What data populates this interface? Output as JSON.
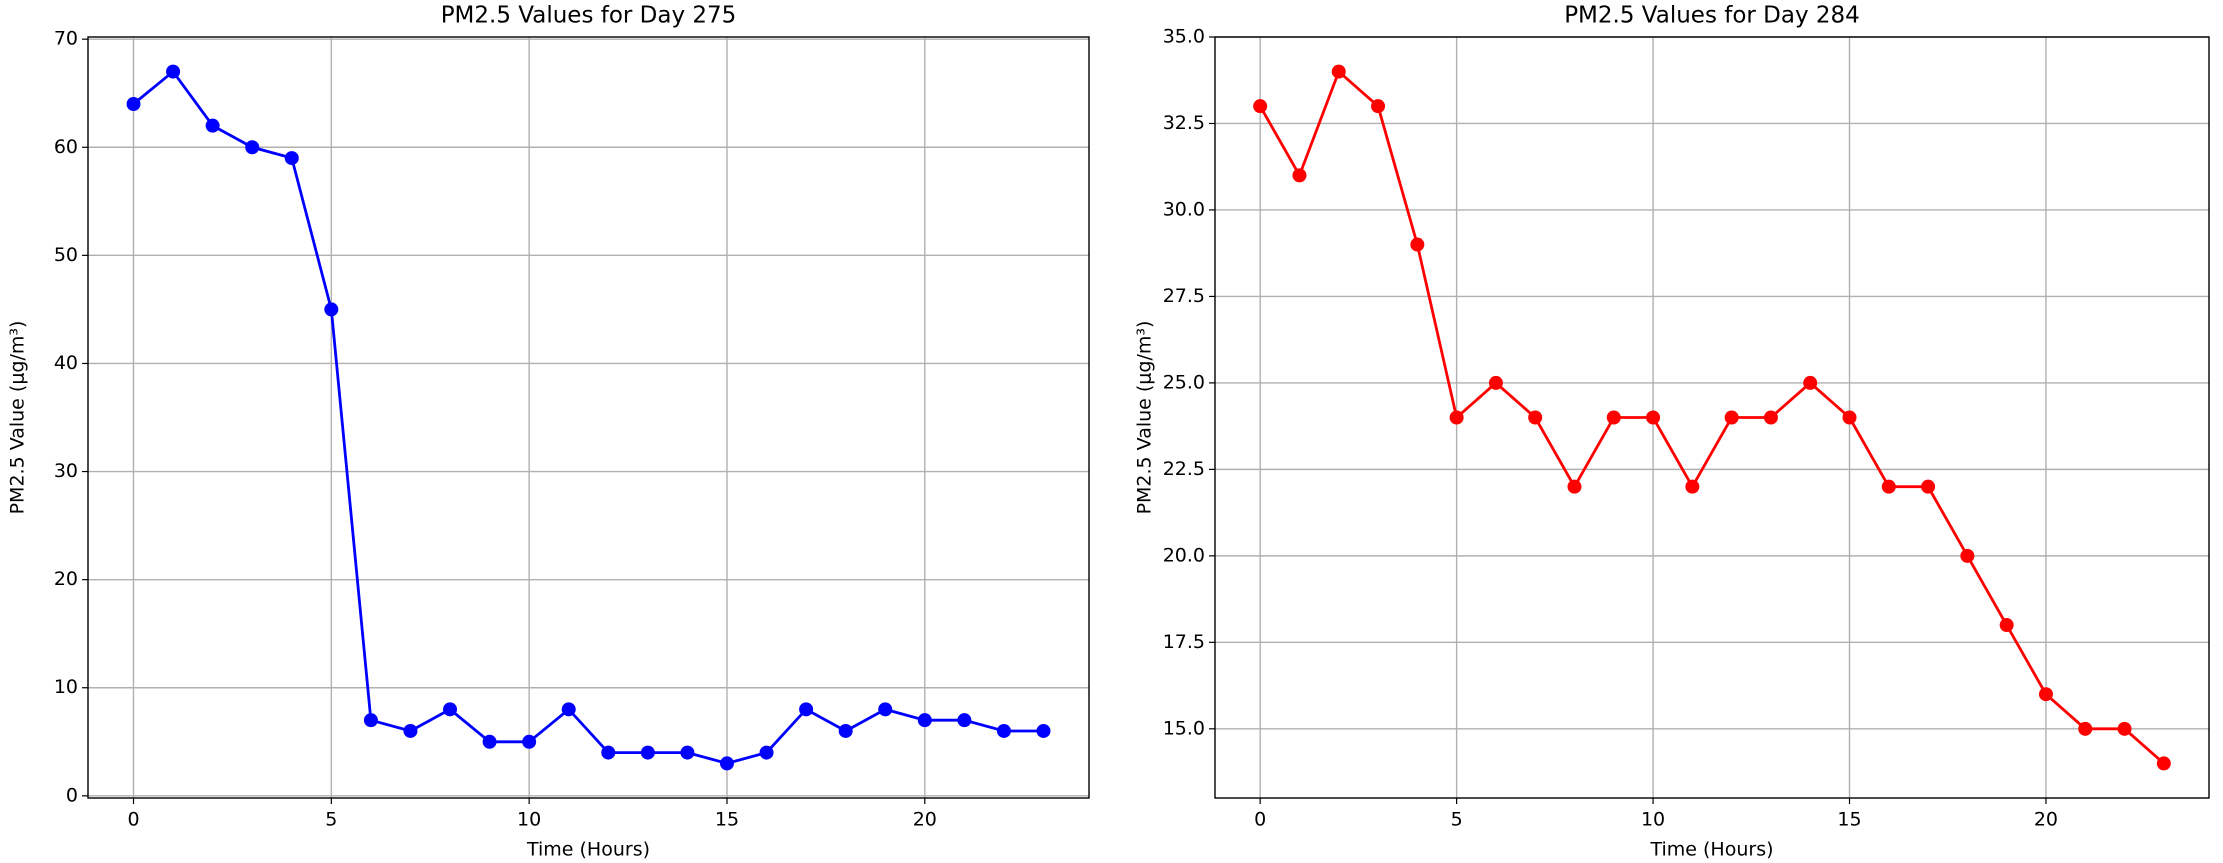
{
  "chart_data": [
    {
      "type": "line",
      "title": "PM2.5 Values for Day 275",
      "x_label": "Time (Hours)",
      "y_label": "PM2.5 Value (μg/m³)",
      "x": [
        0,
        1,
        2,
        3,
        4,
        5,
        6,
        7,
        8,
        9,
        10,
        11,
        12,
        13,
        14,
        15,
        16,
        17,
        18,
        19,
        20,
        21,
        22,
        23
      ],
      "series": [
        {
          "color": "#0000ff",
          "values": [
            64,
            67,
            62,
            60,
            59,
            45,
            7,
            6,
            8,
            5,
            5,
            8,
            4,
            4,
            4,
            3,
            4,
            8,
            6,
            8,
            7,
            7,
            6,
            6
          ]
        }
      ],
      "xlim": [
        -1.15,
        24.15
      ],
      "xticks": [
        0,
        5,
        10,
        15,
        20
      ],
      "ylim": [
        -0.2,
        70.2
      ],
      "yticks": [
        0,
        10,
        20,
        30,
        40,
        50,
        60,
        70
      ],
      "grid": true
    },
    {
      "type": "line",
      "title": "PM2.5 Values for Day 284",
      "x_label": "Time (Hours)",
      "y_label": "PM2.5 Value (μg/m³)",
      "x": [
        0,
        1,
        2,
        3,
        4,
        5,
        6,
        7,
        8,
        9,
        10,
        11,
        12,
        13,
        14,
        15,
        16,
        17,
        18,
        19,
        20,
        21,
        22,
        23
      ],
      "series": [
        {
          "color": "#ff0000",
          "values": [
            33,
            31,
            34,
            33,
            29,
            24,
            25,
            24,
            22,
            24,
            24,
            22,
            24,
            24,
            25,
            24,
            22,
            22,
            20,
            18,
            16,
            15,
            15,
            14
          ]
        }
      ],
      "xlim": [
        -1.15,
        24.15
      ],
      "xticks": [
        0,
        5,
        10,
        15,
        20
      ],
      "ylim": [
        13,
        35
      ],
      "yticks": [
        {
          "value": 15,
          "label": "15.0"
        },
        {
          "value": 17.5,
          "label": "17.5"
        },
        {
          "value": 20,
          "label": "20.0"
        },
        {
          "value": 22.5,
          "label": "22.5"
        },
        {
          "value": 25,
          "label": "25.0"
        },
        {
          "value": 27.5,
          "label": "27.5"
        },
        {
          "value": 30,
          "label": "30.0"
        },
        {
          "value": 32.5,
          "label": "32.5"
        },
        {
          "value": 35,
          "label": "35.0"
        }
      ],
      "grid": true
    }
  ]
}
